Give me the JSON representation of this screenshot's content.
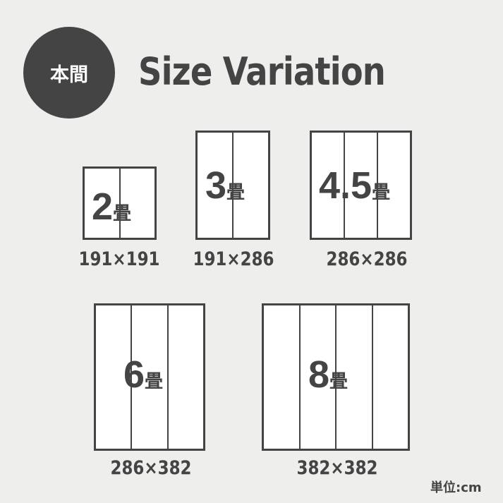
{
  "badge": {
    "label": "本間"
  },
  "title": "Size Variation",
  "unit": "単位:cm",
  "sizes": [
    {
      "number": "2",
      "suffix": "畳",
      "dimensions": "191×191",
      "panels": 2
    },
    {
      "number": "3",
      "suffix": "畳",
      "dimensions": "191×286",
      "panels": 2
    },
    {
      "number": "4.5",
      "suffix": "畳",
      "dimensions": "286×286",
      "panels": 3
    },
    {
      "number": "6",
      "suffix": "畳",
      "dimensions": "286×382",
      "panels": 3
    },
    {
      "number": "8",
      "suffix": "畳",
      "dimensions": "382×382",
      "panels": 4
    }
  ],
  "colors": {
    "background": "#eeeeec",
    "ink": "#444444",
    "mat": "#ffffff"
  }
}
